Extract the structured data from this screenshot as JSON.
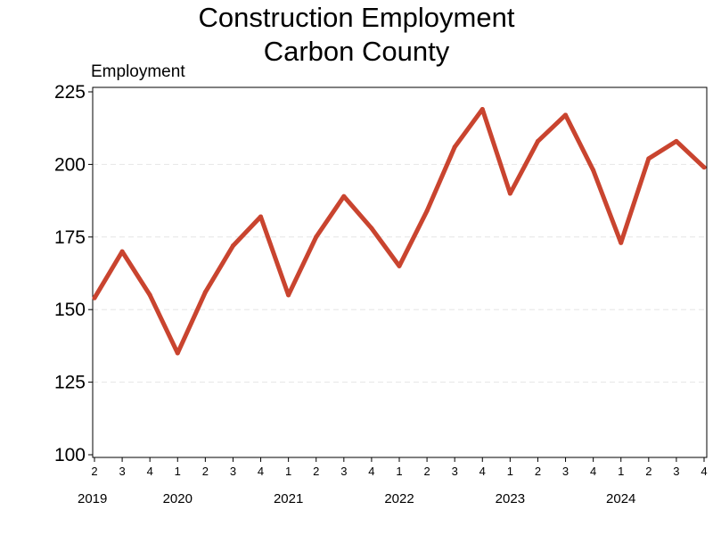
{
  "chart_data": {
    "type": "line",
    "title": [
      "Construction Employment",
      "Carbon County"
    ],
    "ylabel": "Employment",
    "xlabel": "",
    "ylim": [
      100,
      225
    ],
    "yticks": [
      100,
      125,
      150,
      175,
      200,
      225
    ],
    "grid": "horizontal dashed",
    "x_quarters": [
      "2",
      "3",
      "4",
      "1",
      "2",
      "3",
      "4",
      "1",
      "2",
      "3",
      "4",
      "1",
      "2",
      "3",
      "4",
      "1",
      "2",
      "3",
      "4",
      "1",
      "2",
      "3",
      "4"
    ],
    "x_years": [
      {
        "label": "2019",
        "index": 0
      },
      {
        "label": "2020",
        "index": 3
      },
      {
        "label": "2021",
        "index": 7
      },
      {
        "label": "2022",
        "index": 11
      },
      {
        "label": "2023",
        "index": 15
      },
      {
        "label": "2024",
        "index": 19
      }
    ],
    "series": [
      {
        "color": "#c9442f",
        "values": [
          154,
          170,
          155,
          135,
          156,
          172,
          182,
          155,
          175,
          189,
          178,
          165,
          184,
          206,
          219,
          190,
          208,
          217,
          198,
          173,
          202,
          208,
          199
        ]
      }
    ]
  }
}
